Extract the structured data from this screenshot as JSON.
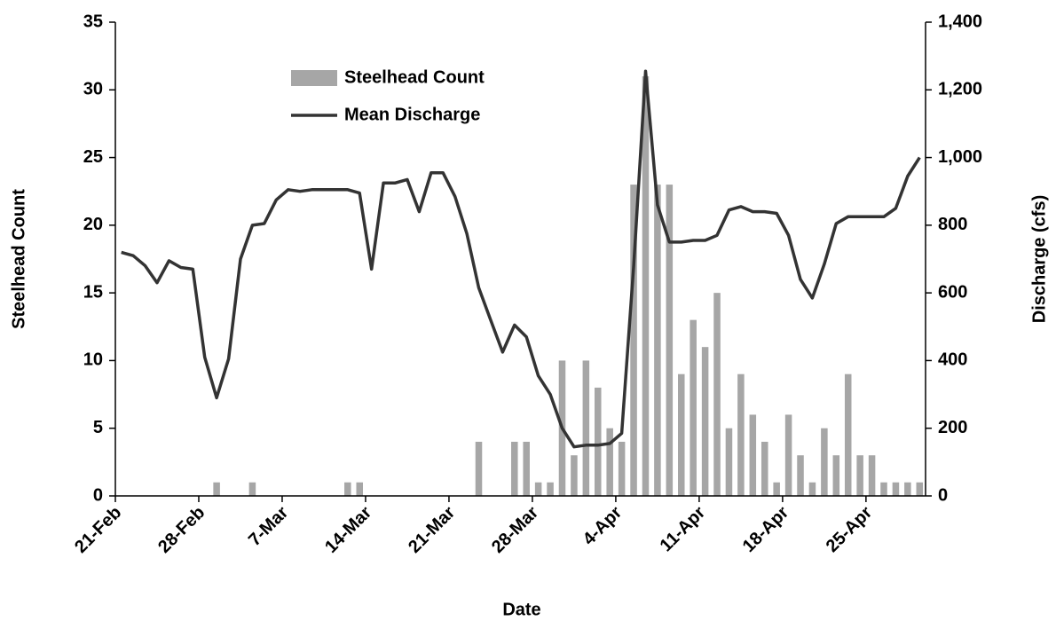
{
  "chart_data": {
    "type": "bar",
    "xlabel": "Date",
    "ylabel": "Steelhead Count",
    "y2label": "Discharge (cfs)",
    "categories": [
      "21-Feb",
      null,
      null,
      null,
      null,
      null,
      null,
      "28-Feb",
      null,
      null,
      null,
      null,
      null,
      null,
      "7-Mar",
      null,
      null,
      null,
      null,
      null,
      null,
      "14-Mar",
      null,
      null,
      null,
      null,
      null,
      null,
      "21-Mar",
      null,
      null,
      null,
      null,
      null,
      null,
      "28-Mar",
      null,
      null,
      null,
      null,
      null,
      null,
      "4-Apr",
      null,
      null,
      null,
      null,
      null,
      null,
      "11-Apr",
      null,
      null,
      null,
      null,
      null,
      null,
      "18-Apr",
      null,
      null,
      null,
      null,
      null,
      null,
      "25-Apr",
      null,
      null,
      null,
      null
    ],
    "series": [
      {
        "name": "Steelhead Count",
        "type": "bar",
        "color": "#a6a6a6",
        "values": [
          0,
          0,
          0,
          0,
          0,
          0,
          0,
          0,
          1,
          0,
          0,
          1,
          0,
          0,
          0,
          0,
          0,
          0,
          0,
          1,
          1,
          0,
          0,
          0,
          0,
          0,
          0,
          0,
          0,
          0,
          4,
          0,
          0,
          4,
          4,
          1,
          1,
          10,
          3,
          10,
          8,
          5,
          4,
          23,
          31,
          23,
          23,
          9,
          13,
          11,
          15,
          5,
          9,
          6,
          4,
          1,
          6,
          3,
          1,
          5,
          3,
          9,
          3,
          3,
          1,
          1,
          1,
          1
        ]
      },
      {
        "name": "Mean Discharge",
        "type": "line",
        "axis": "y2",
        "color": "#333333",
        "values": [
          720,
          710,
          680,
          630,
          695,
          675,
          670,
          410,
          290,
          405,
          700,
          800,
          805,
          875,
          905,
          900,
          905,
          905,
          905,
          905,
          895,
          670,
          925,
          925,
          935,
          840,
          955,
          955,
          885,
          775,
          615,
          520,
          425,
          505,
          470,
          355,
          300,
          200,
          145,
          150,
          150,
          155,
          185,
          680,
          1255,
          860,
          750,
          750,
          755,
          755,
          770,
          845,
          855,
          840,
          840,
          835,
          770,
          640,
          585,
          685,
          805,
          825,
          825,
          825,
          825,
          850,
          945,
          1000
        ]
      }
    ],
    "ylim": [
      0,
      35
    ],
    "yticks": [
      0,
      5,
      10,
      15,
      20,
      25,
      30,
      35
    ],
    "y2lim": [
      0,
      1400
    ],
    "y2ticks": [
      0,
      200,
      400,
      600,
      800,
      {
        "value": 1000,
        "label": "1,000"
      },
      {
        "value": 1200,
        "label": "1,200"
      },
      {
        "value": 1400,
        "label": "1,400"
      }
    ],
    "legend": "upper-left",
    "grid": false
  }
}
